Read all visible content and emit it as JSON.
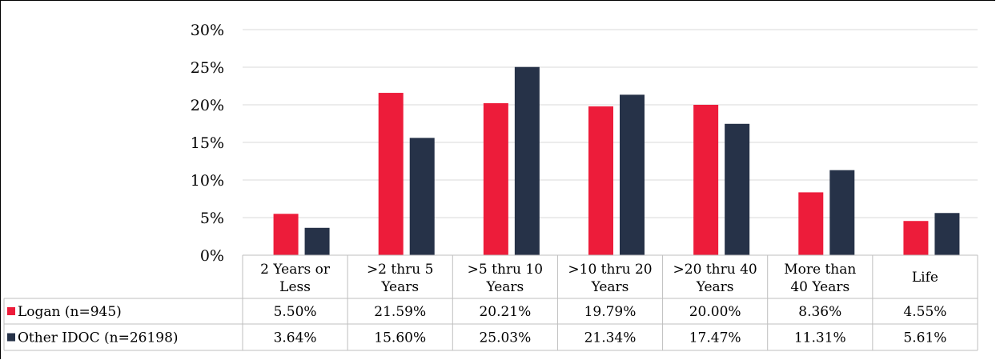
{
  "chart_data": {
    "type": "bar",
    "categories": [
      [
        "2 Years or",
        "Less"
      ],
      [
        ">2 thru 5",
        "Years"
      ],
      [
        ">5 thru 10",
        "Years"
      ],
      [
        ">10 thru 20",
        "Years"
      ],
      [
        ">20 thru 40",
        "Years"
      ],
      [
        "More than",
        "40 Years"
      ],
      [
        "Life"
      ]
    ],
    "series": [
      {
        "name": "Logan (n=945)",
        "color": "#ed1c3a",
        "values": [
          5.5,
          21.59,
          20.21,
          19.79,
          20.0,
          8.36,
          4.55
        ],
        "labels": [
          "5.50%",
          "21.59%",
          "20.21%",
          "19.79%",
          "20.00%",
          "8.36%",
          "4.55%"
        ]
      },
      {
        "name": "Other IDOC (n=26198)",
        "color": "#263248",
        "values": [
          3.64,
          15.6,
          25.03,
          21.34,
          17.47,
          11.31,
          5.61
        ],
        "labels": [
          "3.64%",
          "15.60%",
          "25.03%",
          "21.34%",
          "17.47%",
          "11.31%",
          "5.61%"
        ]
      }
    ],
    "yticks": [
      "0%",
      "5%",
      "10%",
      "15%",
      "20%",
      "25%",
      "30%"
    ],
    "ylim": [
      0,
      30
    ],
    "grid": true,
    "legend": "data-table"
  }
}
